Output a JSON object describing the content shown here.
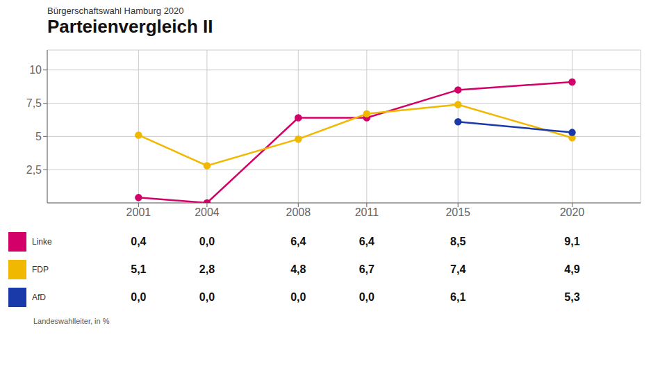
{
  "chart_data": {
    "type": "line",
    "subtitle": "Bürgerschaftswahl Hamburg 2020",
    "title": "Parteienvergleich II",
    "x": [
      2001,
      2004,
      2008,
      2011,
      2015,
      2020
    ],
    "xlim": [
      1997,
      2023
    ],
    "xticks": [
      2001,
      2004,
      2008,
      2011,
      2015,
      2020
    ],
    "ylim": [
      0,
      11.5
    ],
    "yticks": [
      {
        "value": 2.5,
        "label": "2,5"
      },
      5,
      {
        "value": 7.5,
        "label": "7,5"
      },
      10
    ],
    "grid": true,
    "marker": "circle",
    "series": [
      {
        "name": "Linke",
        "color": "#d4006a",
        "values": [
          0.4,
          0.0,
          6.4,
          6.4,
          8.5,
          9.1
        ],
        "table_values": [
          0.4,
          0.0,
          6.4,
          6.4,
          8.5,
          9.1
        ],
        "table_labels": [
          "0,4",
          "0,0",
          "6,4",
          "6,4",
          "8,5",
          "9,1"
        ]
      },
      {
        "name": "FDP",
        "color": "#f0b800",
        "values": [
          5.1,
          2.8,
          4.8,
          6.7,
          7.4,
          4.9
        ],
        "table_values": [
          5.1,
          2.8,
          4.8,
          6.7,
          7.4,
          4.9
        ],
        "table_labels": [
          "5,1",
          "2,8",
          "4,8",
          "6,7",
          "7,4",
          "4,9"
        ]
      },
      {
        "name": "AfD",
        "color": "#1a3aaa",
        "values": [
          null,
          null,
          null,
          null,
          6.1,
          5.3
        ],
        "table_values": [
          0.0,
          0.0,
          0.0,
          0.0,
          6.1,
          5.3
        ],
        "table_labels": [
          "0,0",
          "0,0",
          "0,0",
          "0,0",
          "6,1",
          "5,3"
        ]
      }
    ],
    "annotations": [
      "Landeswahlleiter, in %"
    ]
  }
}
